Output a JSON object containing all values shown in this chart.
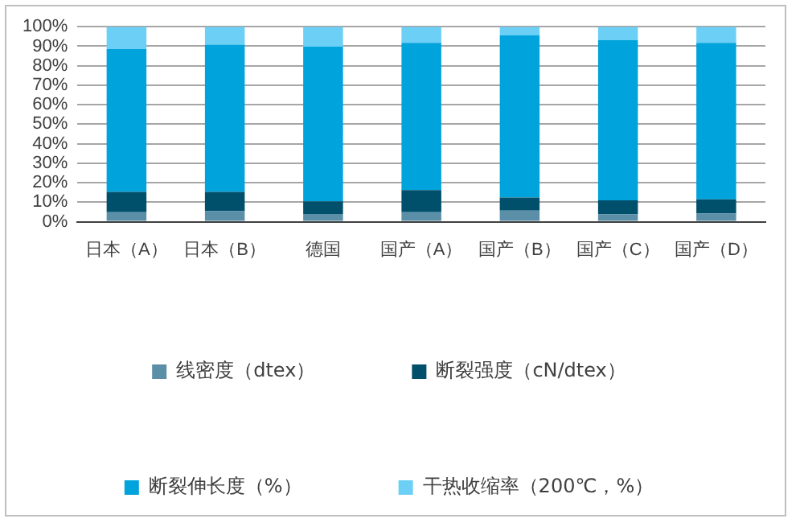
{
  "chart_data": {
    "type": "bar",
    "stacked": true,
    "categories": [
      "日本（A）",
      "日本（B）",
      "德国",
      "国产（A）",
      "国产（B）",
      "国产（C）",
      "国产（D）"
    ],
    "series": [
      {
        "name": "线密度（dtex）",
        "color": "#5b8fa8",
        "values": [
          4.9,
          5.4,
          4.0,
          4.9,
          5.7,
          3.8,
          4.3
        ]
      },
      {
        "name": "断裂强度（cN/dtex）",
        "color": "#00506b",
        "values": [
          10.4,
          9.9,
          6.5,
          11.3,
          6.7,
          7.2,
          7.2
        ]
      },
      {
        "name": "断裂伸长度（%）",
        "color": "#00a3dc",
        "values": [
          73.2,
          75.5,
          79.3,
          75.5,
          83.1,
          82.2,
          80.2
        ]
      },
      {
        "name": "干热收缩率（200℃，%）",
        "color": "#6ccff6",
        "values": [
          11.5,
          9.2,
          10.2,
          8.3,
          4.5,
          6.8,
          8.3
        ]
      }
    ],
    "ylim": [
      0,
      100
    ],
    "yticks": [
      {
        "value": 0,
        "label": "0%"
      },
      {
        "value": 10,
        "label": "10%"
      },
      {
        "value": 20,
        "label": "20%"
      },
      {
        "value": 30,
        "label": "30%"
      },
      {
        "value": 40,
        "label": "40%"
      },
      {
        "value": 50,
        "label": "50%"
      },
      {
        "value": 60,
        "label": "60%"
      },
      {
        "value": 70,
        "label": "70%"
      },
      {
        "value": 80,
        "label": "80%"
      },
      {
        "value": 90,
        "label": "90%"
      },
      {
        "value": 100,
        "label": "100%"
      }
    ],
    "grid": "y",
    "legend": "bottom"
  }
}
